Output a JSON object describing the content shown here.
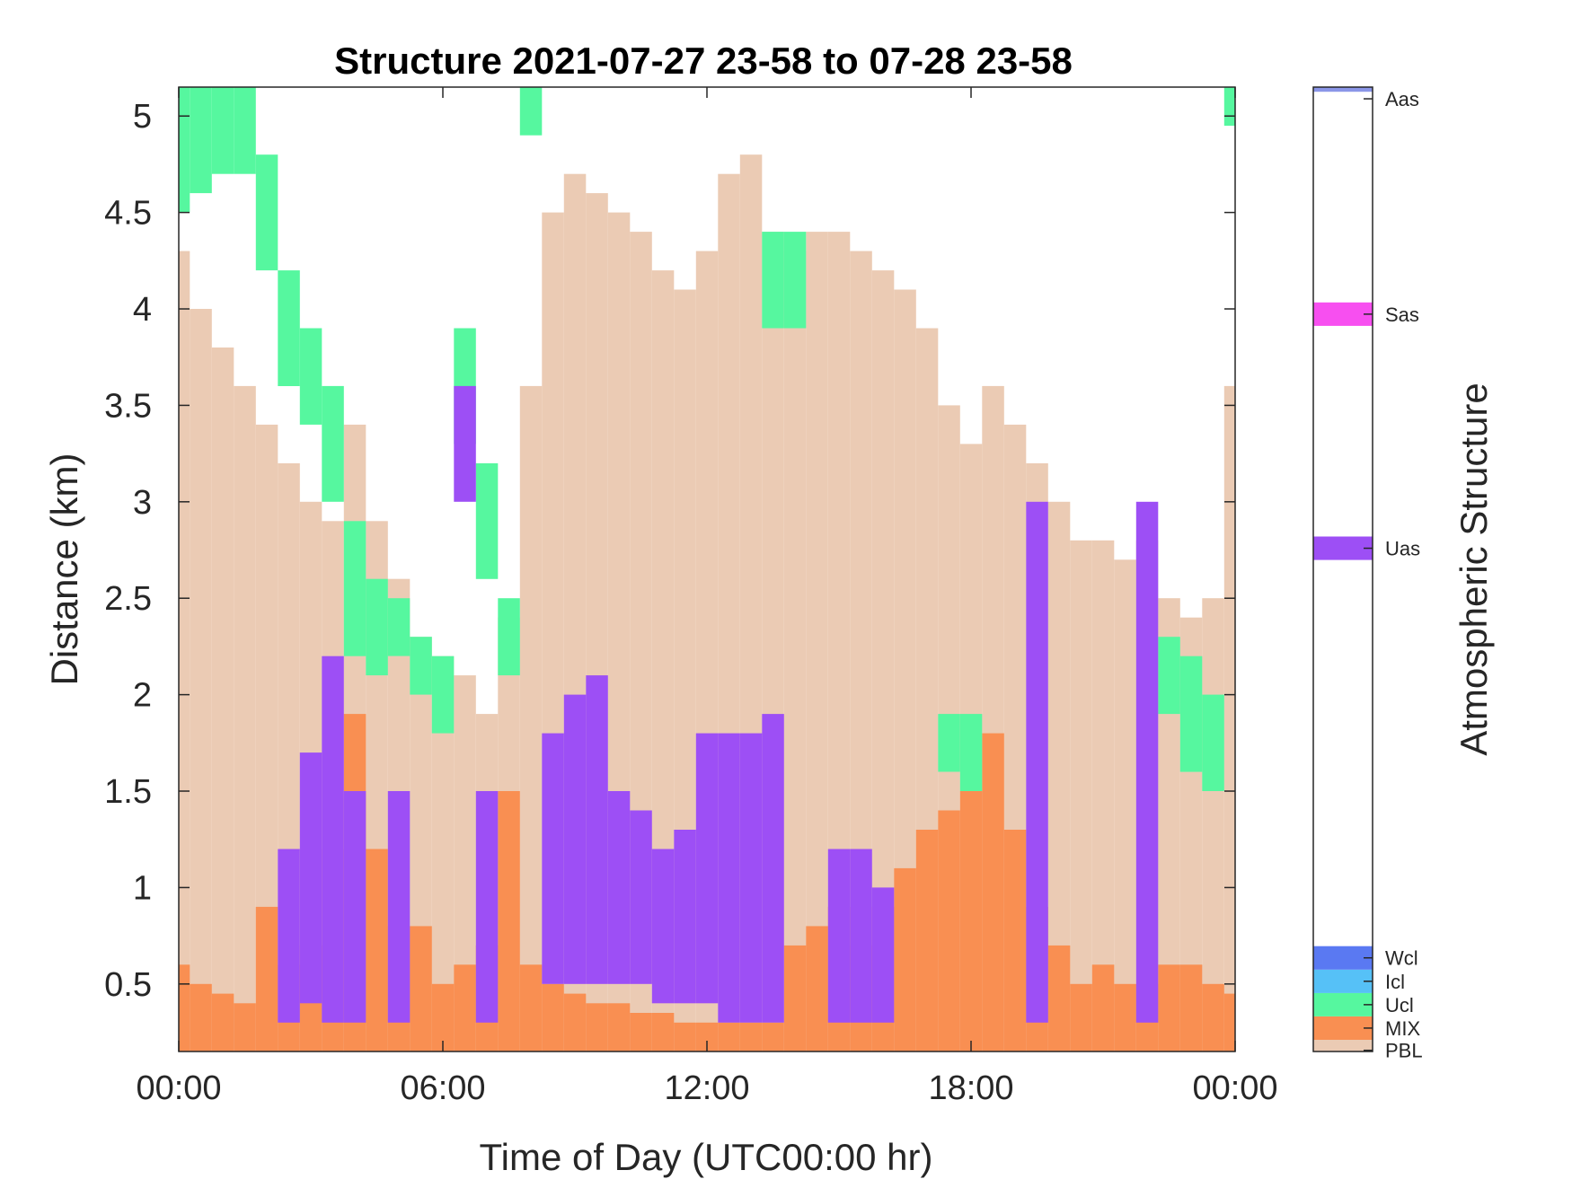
{
  "chart_data": {
    "type": "heatmap",
    "title": "Structure 2021-07-27 23-58 to 07-28 23-58",
    "xlabel": "Time of Day (UTC00:00 hr)",
    "ylabel": "Distance (km)",
    "xlim": [
      0,
      24
    ],
    "ylim": [
      0.15,
      5.15
    ],
    "x_ticks": [
      {
        "value": 0,
        "label": "00:00"
      },
      {
        "value": 6,
        "label": "06:00"
      },
      {
        "value": 12,
        "label": "12:00"
      },
      {
        "value": 18,
        "label": "18:00"
      },
      {
        "value": 24,
        "label": "00:00"
      }
    ],
    "y_ticks": [
      {
        "value": 0.5,
        "label": "0.5"
      },
      {
        "value": 1,
        "label": "1"
      },
      {
        "value": 1.5,
        "label": "1.5"
      },
      {
        "value": 2,
        "label": "2"
      },
      {
        "value": 2.5,
        "label": "2.5"
      },
      {
        "value": 3,
        "label": "3"
      },
      {
        "value": 3.5,
        "label": "3.5"
      },
      {
        "value": 4,
        "label": "4"
      },
      {
        "value": 4.5,
        "label": "4.5"
      },
      {
        "value": 5,
        "label": "5"
      }
    ],
    "grid": false,
    "colorbar": {
      "label": "Atmospheric Structure",
      "placement": "right",
      "classes": [
        {
          "name": "PBL",
          "color": "#ebcbb4"
        },
        {
          "name": "MIX",
          "color": "#f98f52"
        },
        {
          "name": "Ucl",
          "color": "#56f79f"
        },
        {
          "name": "Icl",
          "color": "#56c1f7"
        },
        {
          "name": "Wcl",
          "color": "#5a79f2"
        },
        {
          "name": "Uas",
          "color": "#9d4ff5"
        },
        {
          "name": "Sas",
          "color": "#f74ff0"
        },
        {
          "name": "Aas",
          "color": "#8b96e8"
        }
      ]
    },
    "series": [
      {
        "name": "PBL",
        "color": "#ebcbb4",
        "points": [
          [
            0.0,
            4.3
          ],
          [
            0.5,
            4.0
          ],
          [
            1.0,
            3.8
          ],
          [
            1.5,
            3.6
          ],
          [
            2.0,
            3.4
          ],
          [
            2.5,
            3.2
          ],
          [
            3.0,
            3.0
          ],
          [
            3.5,
            2.9
          ],
          [
            4.0,
            3.4
          ],
          [
            4.5,
            2.9
          ],
          [
            5.0,
            2.6
          ],
          [
            5.5,
            2.3
          ],
          [
            6.0,
            2.2
          ],
          [
            6.5,
            2.1
          ],
          [
            7.0,
            1.9
          ],
          [
            7.5,
            2.4
          ],
          [
            8.0,
            3.6
          ],
          [
            8.5,
            4.5
          ],
          [
            9.0,
            4.7
          ],
          [
            9.5,
            4.6
          ],
          [
            10.0,
            4.5
          ],
          [
            10.5,
            4.4
          ],
          [
            11.0,
            4.2
          ],
          [
            11.5,
            4.1
          ],
          [
            12.0,
            4.3
          ],
          [
            12.5,
            4.7
          ],
          [
            13.0,
            4.8
          ],
          [
            13.5,
            4.4
          ],
          [
            14.0,
            4.3
          ],
          [
            14.5,
            4.4
          ],
          [
            15.0,
            4.4
          ],
          [
            15.5,
            4.3
          ],
          [
            16.0,
            4.2
          ],
          [
            16.5,
            4.1
          ],
          [
            17.0,
            3.9
          ],
          [
            17.5,
            3.5
          ],
          [
            18.0,
            3.3
          ],
          [
            18.5,
            3.6
          ],
          [
            19.0,
            3.4
          ],
          [
            19.5,
            3.2
          ],
          [
            20.0,
            3.0
          ],
          [
            20.5,
            2.8
          ],
          [
            21.0,
            2.8
          ],
          [
            21.5,
            2.7
          ],
          [
            22.0,
            2.8
          ],
          [
            22.5,
            2.5
          ],
          [
            23.0,
            2.4
          ],
          [
            23.5,
            2.5
          ],
          [
            24.0,
            3.6
          ]
        ]
      },
      {
        "name": "MIX",
        "color": "#f98f52",
        "points": [
          [
            0.0,
            0.6
          ],
          [
            0.5,
            0.5
          ],
          [
            1.0,
            0.45
          ],
          [
            1.5,
            0.4
          ],
          [
            2.0,
            0.9
          ],
          [
            2.5,
            0.6
          ],
          [
            3.0,
            0.7
          ],
          [
            3.5,
            1.2
          ],
          [
            4.0,
            1.9
          ],
          [
            4.5,
            1.2
          ],
          [
            5.0,
            0.8
          ],
          [
            5.5,
            0.8
          ],
          [
            6.0,
            0.5
          ],
          [
            6.5,
            0.6
          ],
          [
            7.0,
            0.7
          ],
          [
            7.5,
            1.5
          ],
          [
            8.0,
            0.6
          ],
          [
            8.5,
            0.5
          ],
          [
            9.0,
            0.45
          ],
          [
            9.5,
            0.4
          ],
          [
            10.0,
            0.4
          ],
          [
            10.5,
            0.35
          ],
          [
            11.0,
            0.35
          ],
          [
            11.5,
            0.3
          ],
          [
            12.0,
            0.3
          ],
          [
            12.5,
            0.3
          ],
          [
            13.0,
            0.3
          ],
          [
            13.5,
            0.3
          ],
          [
            14.0,
            0.7
          ],
          [
            14.5,
            0.8
          ],
          [
            15.0,
            0.9
          ],
          [
            15.5,
            0.7
          ],
          [
            16.0,
            0.9
          ],
          [
            16.5,
            1.1
          ],
          [
            17.0,
            1.3
          ],
          [
            17.5,
            1.4
          ],
          [
            18.0,
            1.5
          ],
          [
            18.5,
            1.8
          ],
          [
            19.0,
            1.3
          ],
          [
            19.5,
            0.9
          ],
          [
            20.0,
            0.7
          ],
          [
            20.5,
            0.5
          ],
          [
            21.0,
            0.6
          ],
          [
            21.5,
            0.5
          ],
          [
            22.0,
            0.5
          ],
          [
            22.5,
            0.6
          ],
          [
            23.0,
            0.6
          ],
          [
            23.5,
            0.5
          ],
          [
            24.0,
            0.45
          ]
        ]
      },
      {
        "name": "Ucl",
        "color": "#56f79f",
        "segments": [
          [
            0.0,
            4.5,
            5.15
          ],
          [
            0.5,
            4.6,
            5.15
          ],
          [
            1.0,
            4.7,
            5.15
          ],
          [
            1.5,
            4.7,
            5.15
          ],
          [
            2.0,
            4.2,
            4.8
          ],
          [
            2.5,
            3.6,
            4.2
          ],
          [
            3.0,
            3.4,
            3.9
          ],
          [
            3.5,
            3.0,
            3.6
          ],
          [
            4.0,
            2.2,
            2.9
          ],
          [
            4.5,
            2.1,
            2.6
          ],
          [
            5.0,
            2.2,
            2.5
          ],
          [
            5.5,
            2.0,
            2.3
          ],
          [
            6.0,
            1.8,
            2.2
          ],
          [
            6.5,
            3.3,
            3.9
          ],
          [
            7.0,
            2.6,
            3.2
          ],
          [
            7.5,
            2.1,
            2.5
          ],
          [
            8.0,
            4.9,
            5.15
          ],
          [
            13.5,
            3.9,
            4.4
          ],
          [
            14.0,
            3.9,
            4.4
          ],
          [
            17.5,
            1.6,
            1.9
          ],
          [
            18.0,
            1.5,
            1.9
          ],
          [
            22.5,
            1.9,
            2.3
          ],
          [
            23.0,
            1.6,
            2.2
          ],
          [
            23.5,
            1.5,
            2.0
          ],
          [
            24.0,
            4.95,
            5.15
          ]
        ]
      },
      {
        "name": "Uas",
        "color": "#9d4ff5",
        "segments": [
          [
            2.5,
            0.3,
            1.2
          ],
          [
            3.0,
            0.4,
            1.7
          ],
          [
            3.5,
            0.3,
            2.2
          ],
          [
            4.0,
            0.3,
            1.5
          ],
          [
            5.0,
            0.3,
            1.5
          ],
          [
            6.5,
            3.0,
            3.6
          ],
          [
            7.0,
            0.3,
            1.5
          ],
          [
            8.5,
            0.5,
            1.8
          ],
          [
            9.0,
            0.5,
            2.0
          ],
          [
            9.5,
            0.5,
            2.1
          ],
          [
            10.0,
            0.5,
            1.5
          ],
          [
            10.5,
            0.5,
            1.4
          ],
          [
            11.0,
            0.4,
            1.2
          ],
          [
            11.5,
            0.4,
            1.3
          ],
          [
            12.0,
            0.4,
            1.8
          ],
          [
            12.5,
            0.3,
            1.8
          ],
          [
            13.0,
            0.3,
            1.8
          ],
          [
            13.5,
            0.3,
            1.9
          ],
          [
            15.0,
            0.3,
            1.2
          ],
          [
            15.5,
            0.3,
            1.2
          ],
          [
            16.0,
            0.3,
            1.0
          ],
          [
            19.5,
            0.3,
            3.0
          ],
          [
            22.0,
            0.3,
            3.0
          ]
        ]
      },
      {
        "name": "Sas",
        "color": "#f74ff0",
        "segments": []
      },
      {
        "name": "Aas",
        "color": "#8b96e8",
        "segments": []
      }
    ]
  }
}
